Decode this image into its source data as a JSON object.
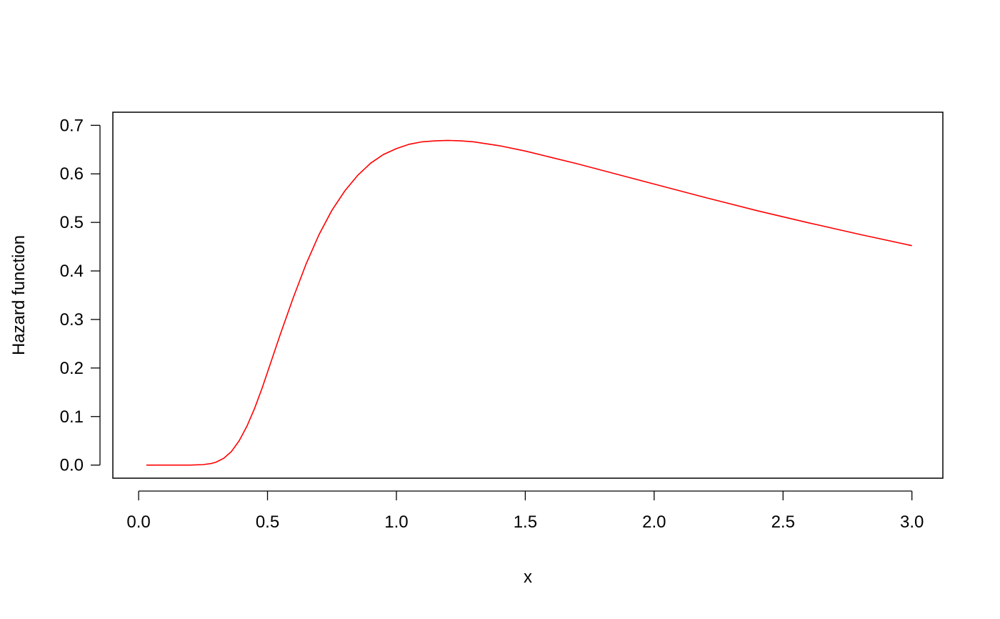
{
  "chart_data": {
    "type": "line",
    "title": "",
    "xlabel": "x",
    "ylabel": "Hazard function",
    "xlim": [
      -0.1,
      3.12
    ],
    "ylim": [
      -0.027,
      0.727
    ],
    "xticks": [
      0.0,
      0.5,
      1.0,
      1.5,
      2.0,
      2.5,
      3.0
    ],
    "xtick_labels": [
      "0.0",
      "0.5",
      "1.0",
      "1.5",
      "2.0",
      "2.5",
      "3.0"
    ],
    "yticks": [
      0.0,
      0.1,
      0.2,
      0.3,
      0.4,
      0.5,
      0.6,
      0.7
    ],
    "ytick_labels": [
      "0.0",
      "0.1",
      "0.2",
      "0.3",
      "0.4",
      "0.5",
      "0.6",
      "0.7"
    ],
    "grid": false,
    "series": [
      {
        "color": "#ff0000",
        "x": [
          0.03,
          0.1,
          0.15,
          0.2,
          0.25,
          0.28,
          0.3,
          0.33,
          0.36,
          0.39,
          0.42,
          0.45,
          0.48,
          0.51,
          0.55,
          0.6,
          0.65,
          0.7,
          0.75,
          0.8,
          0.85,
          0.9,
          0.95,
          1.0,
          1.05,
          1.1,
          1.15,
          1.2,
          1.25,
          1.3,
          1.4,
          1.5,
          1.6,
          1.7,
          1.8,
          1.9,
          2.0,
          2.2,
          2.4,
          2.6,
          2.8,
          3.0
        ],
        "y": [
          0.0,
          0.0,
          0.0,
          0.0,
          0.001,
          0.003,
          0.006,
          0.014,
          0.028,
          0.05,
          0.08,
          0.117,
          0.16,
          0.207,
          0.27,
          0.345,
          0.415,
          0.475,
          0.525,
          0.565,
          0.597,
          0.622,
          0.64,
          0.652,
          0.661,
          0.666,
          0.668,
          0.669,
          0.668,
          0.666,
          0.658,
          0.647,
          0.634,
          0.621,
          0.607,
          0.593,
          0.579,
          0.551,
          0.524,
          0.499,
          0.475,
          0.452
        ]
      }
    ]
  }
}
